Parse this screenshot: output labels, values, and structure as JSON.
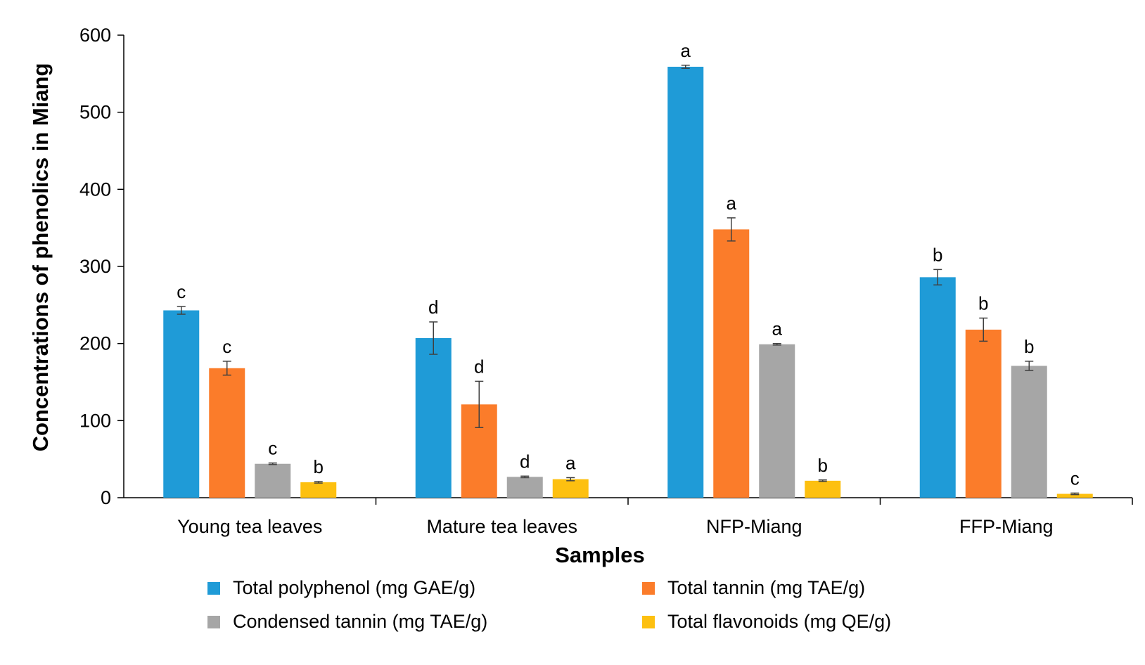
{
  "chart_data": {
    "type": "bar",
    "title": "",
    "xlabel": "Samples",
    "ylabel": "Concentrations of phenolics in Miang",
    "ylim": [
      0,
      600
    ],
    "yticks": [
      0,
      100,
      200,
      300,
      400,
      500,
      600
    ],
    "categories": [
      "Young tea leaves",
      "Mature tea leaves",
      "NFP-Miang",
      "FFP-Miang"
    ],
    "series": [
      {
        "name": "Total polyphenol (mg GAE/g)",
        "color": "#1f9bd7",
        "values": [
          243,
          207,
          559,
          286
        ],
        "errors": [
          5,
          21,
          2,
          10
        ],
        "labels": [
          "c",
          "d",
          "a",
          "b"
        ]
      },
      {
        "name": "Total tannin (mg TAE/g)",
        "color": "#fb7c2a",
        "values": [
          168,
          121,
          348,
          218
        ],
        "errors": [
          9,
          30,
          15,
          15
        ],
        "labels": [
          "c",
          "d",
          "a",
          "b"
        ]
      },
      {
        "name": "Condensed tannin (mg TAE/g)",
        "color": "#a6a6a6",
        "values": [
          44,
          27,
          199,
          171
        ],
        "errors": [
          1,
          1,
          1,
          6
        ],
        "labels": [
          "c",
          "d",
          "a",
          "b"
        ]
      },
      {
        "name": "Total flavonoids (mg QE/g)",
        "color": "#fdc010",
        "values": [
          20,
          24,
          22,
          5
        ],
        "errors": [
          1,
          2,
          1,
          1
        ],
        "labels": [
          "b",
          "a",
          "b",
          "c"
        ]
      }
    ],
    "legend": "bottom"
  }
}
